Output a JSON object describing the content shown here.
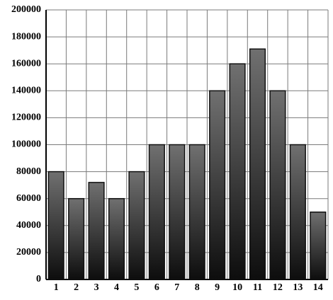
{
  "chart_data": {
    "type": "bar",
    "categories": [
      "1",
      "2",
      "3",
      "4",
      "5",
      "6",
      "7",
      "8",
      "9",
      "10",
      "11",
      "12",
      "13",
      "14"
    ],
    "values": [
      80000,
      60000,
      72000,
      60000,
      80000,
      100000,
      100000,
      100000,
      140000,
      160000,
      171000,
      140000,
      100000,
      50000
    ],
    "color": "#707070",
    "ylim": [
      0,
      200000
    ],
    "yticks": [
      0,
      20000,
      40000,
      60000,
      80000,
      100000,
      120000,
      140000,
      160000,
      180000,
      200000
    ],
    "grid": true
  }
}
